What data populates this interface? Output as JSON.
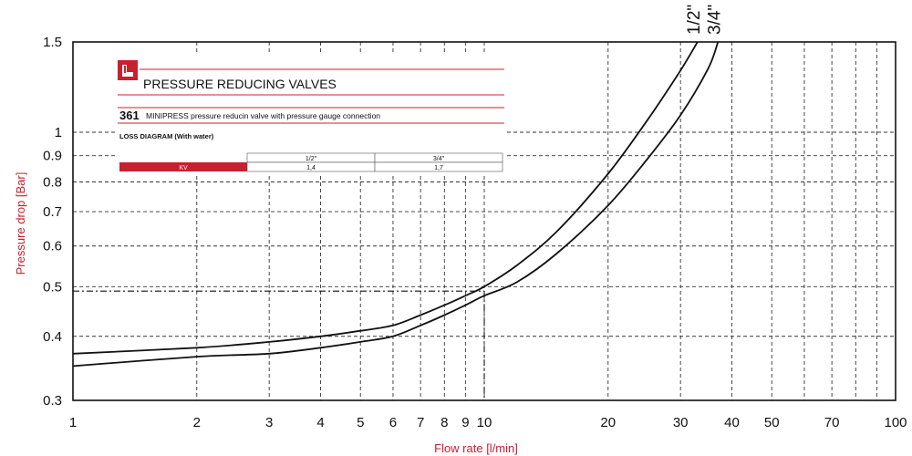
{
  "panel": {
    "title": "PRESSURE REDUCING VALVES",
    "model": "361",
    "description": "MINIPRESS pressure reducin valve with pressure gauge connection",
    "subtitle": "LOSS DIAGRAM (With water)",
    "kv_label": "KV",
    "kv_columns": [
      {
        "size": "1/2\"",
        "value": "1,4"
      },
      {
        "size": "3/4\"",
        "value": "1,7"
      }
    ],
    "accent_color": "#c8202f",
    "logo_icon": "company-logo-icon"
  },
  "chart_data": {
    "type": "line",
    "xscale": "log",
    "yscale": "log",
    "xlabel": "Flow rate [l/min]",
    "ylabel": "Pressure drop [Bar]",
    "xlim": [
      1,
      100
    ],
    "ylim": [
      0.3,
      1.5
    ],
    "grid": true,
    "x_ticks": [
      1,
      2,
      3,
      4,
      5,
      6,
      7,
      8,
      9,
      10,
      20,
      30,
      40,
      50,
      70,
      100
    ],
    "x_tick_labels": [
      "1",
      "2",
      "3",
      "4",
      "5",
      "6",
      "7",
      "8",
      "9",
      "10",
      "20",
      "30",
      "40",
      "50",
      "70",
      "100"
    ],
    "x_grid_minor": [
      60,
      80,
      90
    ],
    "y_ticks": [
      0.3,
      0.4,
      0.5,
      0.6,
      0.7,
      0.8,
      0.9,
      1,
      1.5
    ],
    "y_tick_labels": [
      "0.3",
      "0.4",
      "0.5",
      "0.6",
      "0.7",
      "0.8",
      "0.9",
      "1",
      "1.5"
    ],
    "series": [
      {
        "name": "1/2\"",
        "x": [
          1,
          2,
          3,
          4,
          5,
          6,
          7,
          8,
          9,
          10,
          12,
          15,
          20,
          25,
          30,
          33
        ],
        "y": [
          0.37,
          0.38,
          0.39,
          0.4,
          0.41,
          0.42,
          0.44,
          0.46,
          0.48,
          0.5,
          0.55,
          0.64,
          0.83,
          1.06,
          1.32,
          1.5
        ]
      },
      {
        "name": "3/4\"",
        "x": [
          1,
          2,
          3,
          4,
          5,
          6,
          7,
          8,
          9,
          10,
          12,
          15,
          20,
          25,
          30,
          35,
          37
        ],
        "y": [
          0.35,
          0.365,
          0.37,
          0.38,
          0.39,
          0.4,
          0.42,
          0.44,
          0.46,
          0.48,
          0.51,
          0.58,
          0.72,
          0.89,
          1.08,
          1.33,
          1.5
        ]
      }
    ],
    "reference_point": {
      "x": 10,
      "y": 0.49
    }
  }
}
